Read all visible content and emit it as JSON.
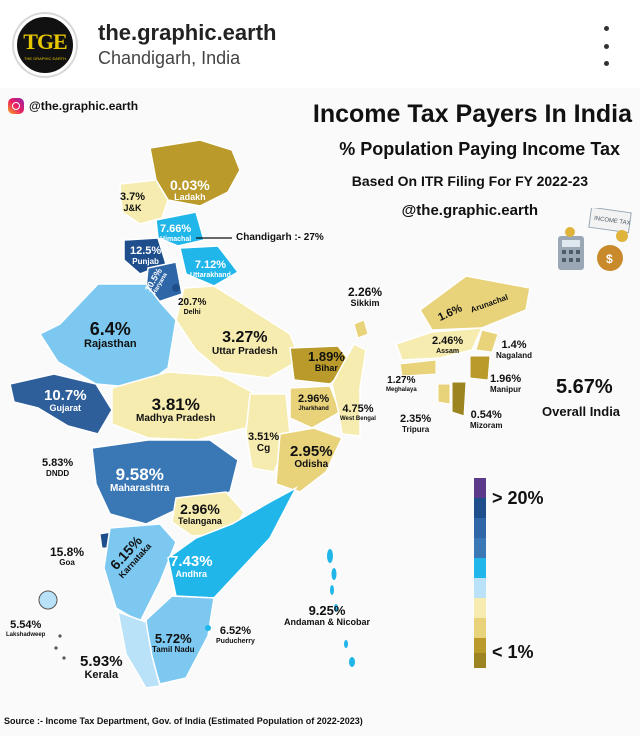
{
  "header": {
    "account_name": "the.graphic.earth",
    "location": "Chandigarh, India",
    "avatar_text": "TGE",
    "avatar_subtext": "THE GRAPHIC EARTH"
  },
  "poster": {
    "insta_handle": "@the.graphic.earth",
    "title": "Income Tax Payers In India",
    "subtitle": "% Population Paying Income Tax",
    "subtitle2": "Based On ITR Filing For FY 2022-23",
    "handle": "@the.graphic.earth",
    "tax_icon_text": "INCOME TAX",
    "chandigarh_note": "Chandigarh :- 27%",
    "overall_value": "5.67%",
    "overall_label": "Overall India",
    "legend_top": "> 20%",
    "legend_bottom": "< 1%",
    "source": "Source :- Income Tax Department, Gov. of India (Estimated Population of 2022-2023)"
  },
  "colors": {
    "dark_blue": "#1f4e8c",
    "mid_blue": "#3a78b5",
    "teal_blue": "#2e86c1",
    "cyan": "#21b6ea",
    "light_blue": "#7cc8f0",
    "pale_blue": "#b9e1f7",
    "pale_yellow": "#f6ecb0",
    "yellow": "#e8d27a",
    "dark_gold": "#b99a2a",
    "olive": "#9c8420",
    "purple": "#5b3a8c"
  },
  "regions": [
    {
      "name": "Ladakh",
      "value": "0.03%",
      "label": "Ladakh"
    },
    {
      "name": "J&K",
      "value": "3.7%",
      "label": "J&K"
    },
    {
      "name": "Himachal",
      "value": "7.66%",
      "label": "Himachal"
    },
    {
      "name": "Punjab",
      "value": "12.5%",
      "label": "Punjab"
    },
    {
      "name": "Uttarakhand",
      "value": "7.12%",
      "label": "Uttarakhand"
    },
    {
      "name": "Haryana",
      "value": "10.5%",
      "label": "Haryana"
    },
    {
      "name": "Delhi",
      "value": "20.7%",
      "label": "Delhi"
    },
    {
      "name": "Rajasthan",
      "value": "6.4%",
      "label": "Rajasthan"
    },
    {
      "name": "Uttar Pradesh",
      "value": "3.27%",
      "label": "Uttar Pradesh"
    },
    {
      "name": "Bihar",
      "value": "1.89%",
      "label": "Bihar"
    },
    {
      "name": "Sikkim",
      "value": "2.26%",
      "label": "Sikkim"
    },
    {
      "name": "Arunachal",
      "value": "1.6%",
      "label": "Arunachal"
    },
    {
      "name": "Assam",
      "value": "2.46%",
      "label": "Assam"
    },
    {
      "name": "Nagaland",
      "value": "1.4%",
      "label": "Nagaland"
    },
    {
      "name": "Meghalaya",
      "value": "1.27%",
      "label": "Meghalaya"
    },
    {
      "name": "Manipur",
      "value": "1.96%",
      "label": "Manipur"
    },
    {
      "name": "Tripura",
      "value": "2.35%",
      "label": "Tripura"
    },
    {
      "name": "Mizoram",
      "value": "0.54%",
      "label": "Mizoram"
    },
    {
      "name": "Gujarat",
      "value": "10.7%",
      "label": "Gujarat"
    },
    {
      "name": "Madhya Pradesh",
      "value": "3.81%",
      "label": "Madhya Pradesh"
    },
    {
      "name": "Jharkhand",
      "value": "2.96%",
      "label": "Jharkhand"
    },
    {
      "name": "West Bengal",
      "value": "4.75%",
      "label": "West Bengal"
    },
    {
      "name": "Chhattisgarh",
      "value": "3.51%",
      "label": "Cg"
    },
    {
      "name": "Odisha",
      "value": "2.95%",
      "label": "Odisha"
    },
    {
      "name": "DNDD",
      "value": "5.83%",
      "label": "DNDD"
    },
    {
      "name": "Maharashtra",
      "value": "9.58%",
      "label": "Maharashtra"
    },
    {
      "name": "Telangana",
      "value": "2.96%",
      "label": "Telangana"
    },
    {
      "name": "Goa",
      "value": "15.8%",
      "label": "Goa"
    },
    {
      "name": "Karnataka",
      "value": "6.15%",
      "label": "Karnataka"
    },
    {
      "name": "Andhra",
      "value": "7.43%",
      "label": "Andhra"
    },
    {
      "name": "Andaman & Nicobar",
      "value": "9.25%",
      "label": "Andaman & Nicobar"
    },
    {
      "name": "Lakshadweep",
      "value": "5.54%",
      "label": "Lakshadweep"
    },
    {
      "name": "Tamil Nadu",
      "value": "5.72%",
      "label": "Tamil Nadu"
    },
    {
      "name": "Puducherry",
      "value": "6.52%",
      "label": "Puducherry"
    },
    {
      "name": "Kerala",
      "value": "5.93%",
      "label": "Kerala"
    }
  ]
}
